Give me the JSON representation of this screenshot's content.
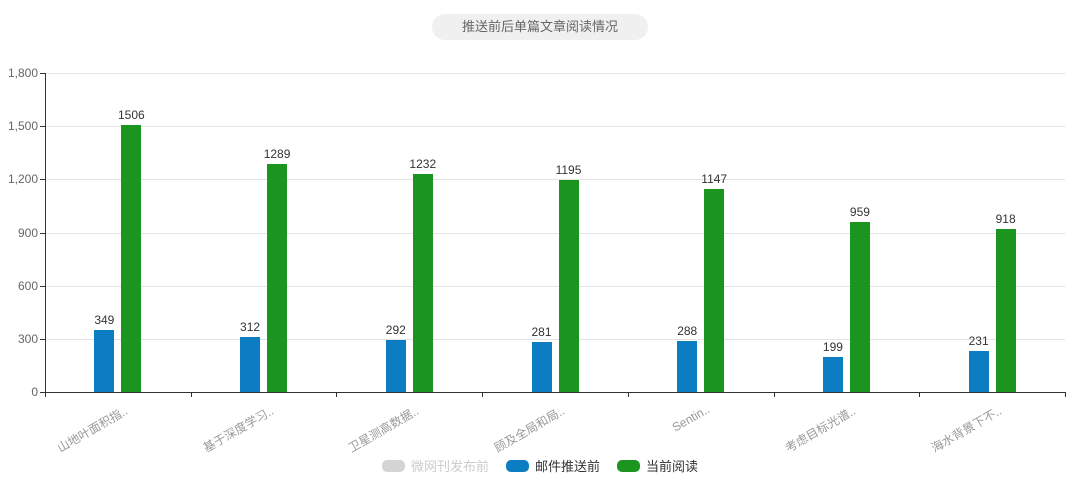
{
  "title": "推送前后单篇文章阅读情况",
  "colors": {
    "series_blue": "#0c7cc3",
    "series_green": "#1b9420",
    "disabled_swatch": "#d4d4d4",
    "disabled_text": "#cccccc",
    "axis": "#333333",
    "gridline": "#e4e4e4",
    "ytick_text": "#666666",
    "xtick_text": "#999999",
    "value_text": "#333333",
    "title_bg": "#f0f0f0",
    "title_text": "#666666"
  },
  "chart_data": {
    "type": "bar",
    "title": "推送前后单篇文章阅读情况",
    "categories": [
      "山地叶面积指..",
      "基于深度学习..",
      "卫星测高数据..",
      "顾及全局和局..",
      "Sentin..",
      "考虑目标光谱..",
      "海水背景下不.."
    ],
    "series": [
      {
        "name": "微网刊发布前",
        "enabled": false,
        "color": "#d4d4d4"
      },
      {
        "name": "邮件推送前",
        "enabled": true,
        "color": "#0c7cc3",
        "values": [
          349,
          312,
          292,
          281,
          288,
          199,
          231
        ]
      },
      {
        "name": "当前阅读",
        "enabled": true,
        "color": "#1b9420",
        "values": [
          1506,
          1289,
          1232,
          1195,
          1147,
          959,
          918
        ]
      }
    ],
    "xlabel": "",
    "ylabel": "",
    "ylim": [
      0,
      1800
    ],
    "yticks": [
      "0",
      "300",
      "600",
      "900",
      "1,200",
      "1,500",
      "1,800"
    ],
    "grid": true,
    "legend_position": "bottom",
    "value_labels": true
  }
}
